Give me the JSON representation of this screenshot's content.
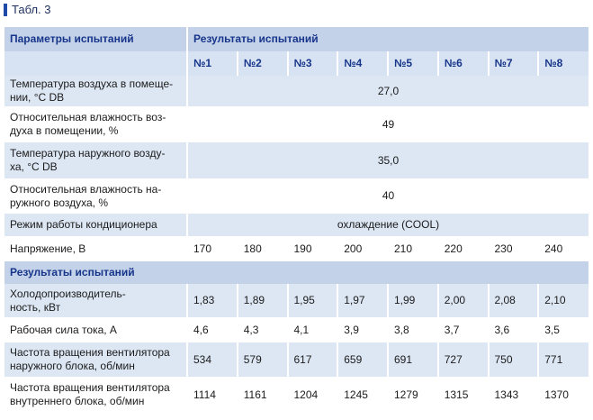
{
  "caption": "Табл. 3",
  "table": {
    "header": [
      "Параметры испытаний",
      "Результаты испытаний"
    ],
    "columns": [
      "№1",
      "№2",
      "№3",
      "№4",
      "№5",
      "№6",
      "№7",
      "№8"
    ],
    "rows": [
      {
        "label": "Температура воздуха в помеще-\nнии, °С DB",
        "cells": [
          "27,0"
        ]
      },
      {
        "label": "Относительная влажность воз-\nдуха в помещении, %",
        "cells": [
          "49"
        ]
      },
      {
        "label": "Температура наружного возду-\nха, °С DB",
        "cells": [
          "35,0"
        ]
      },
      {
        "label": "Относительная влажность на-\nружного воздуха, %",
        "cells": [
          "40"
        ]
      },
      {
        "label": "Режим работы кондиционера",
        "cells": [
          "охлаждение (COOL)"
        ]
      },
      {
        "label": "Напряжение, В",
        "cells": [
          "170",
          "180",
          "190",
          "200",
          "210",
          "220",
          "230",
          "240"
        ]
      },
      {
        "section": "Результаты испытаний"
      },
      {
        "label": "Холодопроизводитель-\nность, кВт",
        "cells": [
          "1,83",
          "1,89",
          "1,95",
          "1,97",
          "1,99",
          "2,00",
          "2,08",
          "2,10"
        ]
      },
      {
        "label": "Рабочая сила тока, А",
        "cells": [
          "4,6",
          "4,3",
          "4,1",
          "3,9",
          "3,8",
          "3,7",
          "3,6",
          "3,5"
        ]
      },
      {
        "label": "Частота вращения вентилятора\nнаружного блока, об/мин",
        "cells": [
          "534",
          "579",
          "617",
          "659",
          "691",
          "727",
          "750",
          "771"
        ]
      },
      {
        "label": "Частота вращения вентилятора\nвнутреннего блока, об/мин",
        "cells": [
          "1114",
          "1161",
          "1204",
          "1245",
          "1279",
          "1315",
          "1343",
          "1370"
        ]
      }
    ]
  }
}
